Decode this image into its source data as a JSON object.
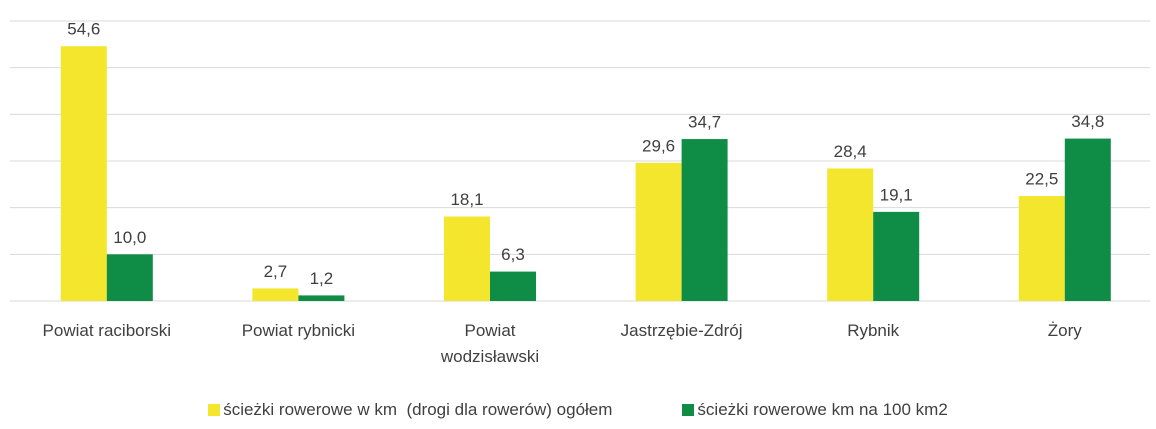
{
  "chart_data": {
    "type": "bar",
    "categories": [
      "Powiat raciborski",
      "Powiat rybnicki",
      "Powiat wodzisławski",
      "Jastrzębie-Zdrój",
      "Rybnik",
      "Żory"
    ],
    "series": [
      {
        "name": "ścieżki rowerowe w km  (drogi dla rowerów) ogółem",
        "color": "#f3e62c",
        "values": [
          54.6,
          2.7,
          18.1,
          29.6,
          28.4,
          22.5
        ],
        "value_labels": [
          "54,6",
          "2,7",
          "18,1",
          "29,6",
          "28,4",
          "22,5"
        ]
      },
      {
        "name": "ścieżki rowerowe km na 100 km2",
        "color": "#0f8c46",
        "values": [
          10.0,
          1.2,
          6.3,
          34.7,
          19.1,
          34.8
        ],
        "value_labels": [
          "10,0",
          "1,2",
          "6,3",
          "34,7",
          "19,1",
          "34,8"
        ]
      }
    ],
    "ylim": [
      0,
      60
    ],
    "yticks": [
      0,
      10,
      20,
      30,
      40,
      50,
      60
    ],
    "grid": true
  }
}
